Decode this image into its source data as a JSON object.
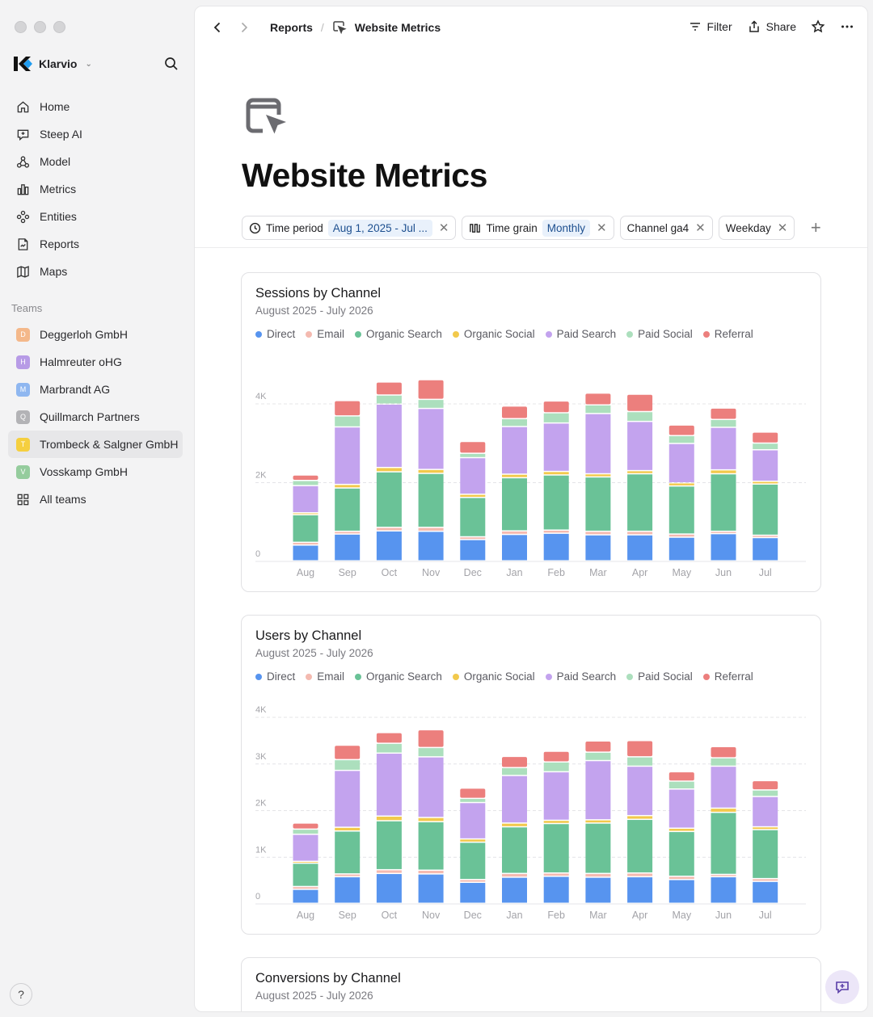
{
  "sidebar": {
    "brand": "Klarvio",
    "nav": [
      {
        "label": "Home",
        "icon": "home-icon"
      },
      {
        "label": "Steep AI",
        "icon": "ai-chat-icon"
      },
      {
        "label": "Model",
        "icon": "model-icon"
      },
      {
        "label": "Metrics",
        "icon": "metrics-icon"
      },
      {
        "label": "Entities",
        "icon": "entities-icon"
      },
      {
        "label": "Reports",
        "icon": "reports-icon"
      },
      {
        "label": "Maps",
        "icon": "maps-icon"
      }
    ],
    "teams_label": "Teams",
    "teams": [
      {
        "letter": "D",
        "label": "Deggerloh GmbH",
        "color": "#f4b88a",
        "active": false
      },
      {
        "letter": "H",
        "label": "Halmreuter oHG",
        "color": "#b79be6",
        "active": false
      },
      {
        "letter": "M",
        "label": "Marbrandt AG",
        "color": "#8fb7f0",
        "active": false
      },
      {
        "letter": "Q",
        "label": "Quillmarch Partners",
        "color": "#b3b3b6",
        "active": false
      },
      {
        "letter": "T",
        "label": "Trombeck & Salgner GmbH",
        "color": "#f5cf3f",
        "active": true
      },
      {
        "letter": "V",
        "label": "Vosskamp GmbH",
        "color": "#95cc9d",
        "active": false
      }
    ],
    "all_teams": "All teams",
    "help": "?"
  },
  "topbar": {
    "crumb_parent": "Reports",
    "crumb_sep": "/",
    "crumb_current": "Website Metrics",
    "filter_label": "Filter",
    "share_label": "Share"
  },
  "page": {
    "title": "Website Metrics"
  },
  "filters": [
    {
      "label": "Time period",
      "value": "Aug 1, 2025 - Jul ...",
      "icon": "clock-icon"
    },
    {
      "label": "Time grain",
      "value": "Monthly",
      "icon": "time-grain-icon"
    },
    {
      "label": "Channel ga4",
      "value": ""
    },
    {
      "label": "Weekday",
      "value": ""
    }
  ],
  "colors": {
    "Direct": "#5794ef",
    "Email": "#f4bab0",
    "Organic Search": "#6ac297",
    "Organic Social": "#f2c94c",
    "Paid Search": "#c3a3ee",
    "Paid Social": "#acdfbd",
    "Referral": "#ec7f7d"
  },
  "cards": [
    {
      "title": "Sessions by Channel",
      "subtitle": "August 2025 - July 2026"
    },
    {
      "title": "Users by Channel",
      "subtitle": "August 2025 - July 2026"
    },
    {
      "title": "Conversions by Channel",
      "subtitle": "August 2025 - July 2026"
    }
  ],
  "chart_data": [
    {
      "type": "bar",
      "stacked": true,
      "title": "Sessions by Channel",
      "subtitle": "August 2025 - July 2026",
      "categories": [
        "Aug",
        "Sep",
        "Oct",
        "Nov",
        "Dec",
        "Jan",
        "Feb",
        "Mar",
        "Apr",
        "May",
        "Jun",
        "Jul"
      ],
      "y_ticks": [
        "0",
        "2K",
        "4K"
      ],
      "ylim": [
        0,
        4000
      ],
      "grid": true,
      "legend": "top-left",
      "series": [
        {
          "name": "Direct",
          "values": [
            400,
            680,
            760,
            750,
            540,
            670,
            700,
            660,
            660,
            600,
            690,
            590
          ]
        },
        {
          "name": "Email",
          "values": [
            70,
            70,
            90,
            100,
            70,
            90,
            80,
            90,
            90,
            80,
            60,
            60
          ]
        },
        {
          "name": "Organic Search",
          "values": [
            700,
            1100,
            1410,
            1370,
            1000,
            1350,
            1400,
            1380,
            1460,
            1220,
            1460,
            1300
          ]
        },
        {
          "name": "Organic Social",
          "values": [
            50,
            90,
            110,
            100,
            80,
            90,
            90,
            80,
            80,
            80,
            100,
            70
          ]
        },
        {
          "name": "Paid Search",
          "values": [
            690,
            1460,
            1610,
            1550,
            930,
            1210,
            1230,
            1530,
            1250,
            1000,
            1080,
            800
          ]
        },
        {
          "name": "Paid Social",
          "values": [
            130,
            280,
            230,
            230,
            110,
            200,
            260,
            220,
            250,
            200,
            200,
            170
          ]
        },
        {
          "name": "Referral",
          "values": [
            140,
            390,
            330,
            500,
            300,
            320,
            300,
            300,
            440,
            270,
            290,
            280
          ]
        }
      ]
    },
    {
      "type": "bar",
      "stacked": true,
      "title": "Users by Channel",
      "subtitle": "August 2025 - July 2026",
      "categories": [
        "Aug",
        "Sep",
        "Oct",
        "Nov",
        "Dec",
        "Jan",
        "Feb",
        "Mar",
        "Apr",
        "May",
        "Jun",
        "Jul"
      ],
      "y_ticks": [
        "0",
        "1K",
        "2K",
        "3K",
        "4K"
      ],
      "ylim": [
        0,
        4000
      ],
      "grid": true,
      "legend": "top-left",
      "series": [
        {
          "name": "Direct",
          "values": [
            300,
            570,
            640,
            630,
            450,
            560,
            580,
            560,
            570,
            510,
            570,
            470
          ]
        },
        {
          "name": "Email",
          "values": [
            60,
            60,
            80,
            80,
            60,
            80,
            70,
            80,
            80,
            70,
            50,
            60
          ]
        },
        {
          "name": "Organic Search",
          "values": [
            500,
            920,
            1050,
            1040,
            800,
            1000,
            1060,
            1080,
            1150,
            960,
            1330,
            1050
          ]
        },
        {
          "name": "Organic Social",
          "values": [
            40,
            80,
            100,
            90,
            70,
            80,
            70,
            70,
            80,
            70,
            90,
            60
          ]
        },
        {
          "name": "Paid Search",
          "values": [
            580,
            1220,
            1350,
            1300,
            780,
            1020,
            1040,
            1270,
            1060,
            840,
            900,
            650
          ]
        },
        {
          "name": "Paid Social",
          "values": [
            110,
            230,
            210,
            200,
            90,
            170,
            210,
            180,
            200,
            170,
            180,
            140
          ]
        },
        {
          "name": "Referral",
          "values": [
            130,
            310,
            230,
            380,
            220,
            240,
            230,
            240,
            350,
            200,
            240,
            200
          ]
        }
      ]
    }
  ]
}
